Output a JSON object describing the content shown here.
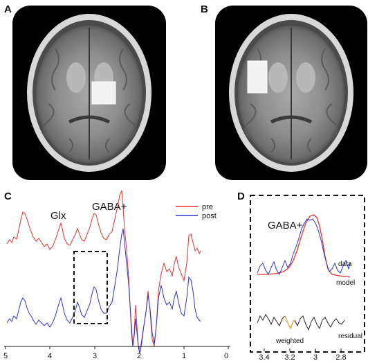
{
  "panels": {
    "a": {
      "label": "A"
    },
    "b": {
      "label": "B"
    },
    "c": {
      "label": "C",
      "peak_labels": {
        "glx": "Glx",
        "gaba": "GABA+"
      },
      "legend": [
        {
          "name": "pre",
          "color": "#e8302a"
        },
        {
          "name": "post",
          "color": "#2b35d8"
        }
      ],
      "x_ticks": [
        "5",
        "4",
        "3",
        "2",
        "1",
        "0"
      ]
    },
    "d": {
      "label": "D",
      "title": "GABA+",
      "labels": {
        "data": "data",
        "model": "model",
        "weighted": "weighted",
        "residual": "residual"
      },
      "x_ticks": [
        "3.4",
        "3.2",
        "3",
        "2.8"
      ]
    }
  },
  "colors": {
    "pre": "#e8302a",
    "post": "#2b35d8",
    "data": "#2b35d8",
    "model": "#e8302a",
    "weighted": "#e89a3c",
    "residual": "#222222",
    "voxel": "#f2f2f2"
  }
}
